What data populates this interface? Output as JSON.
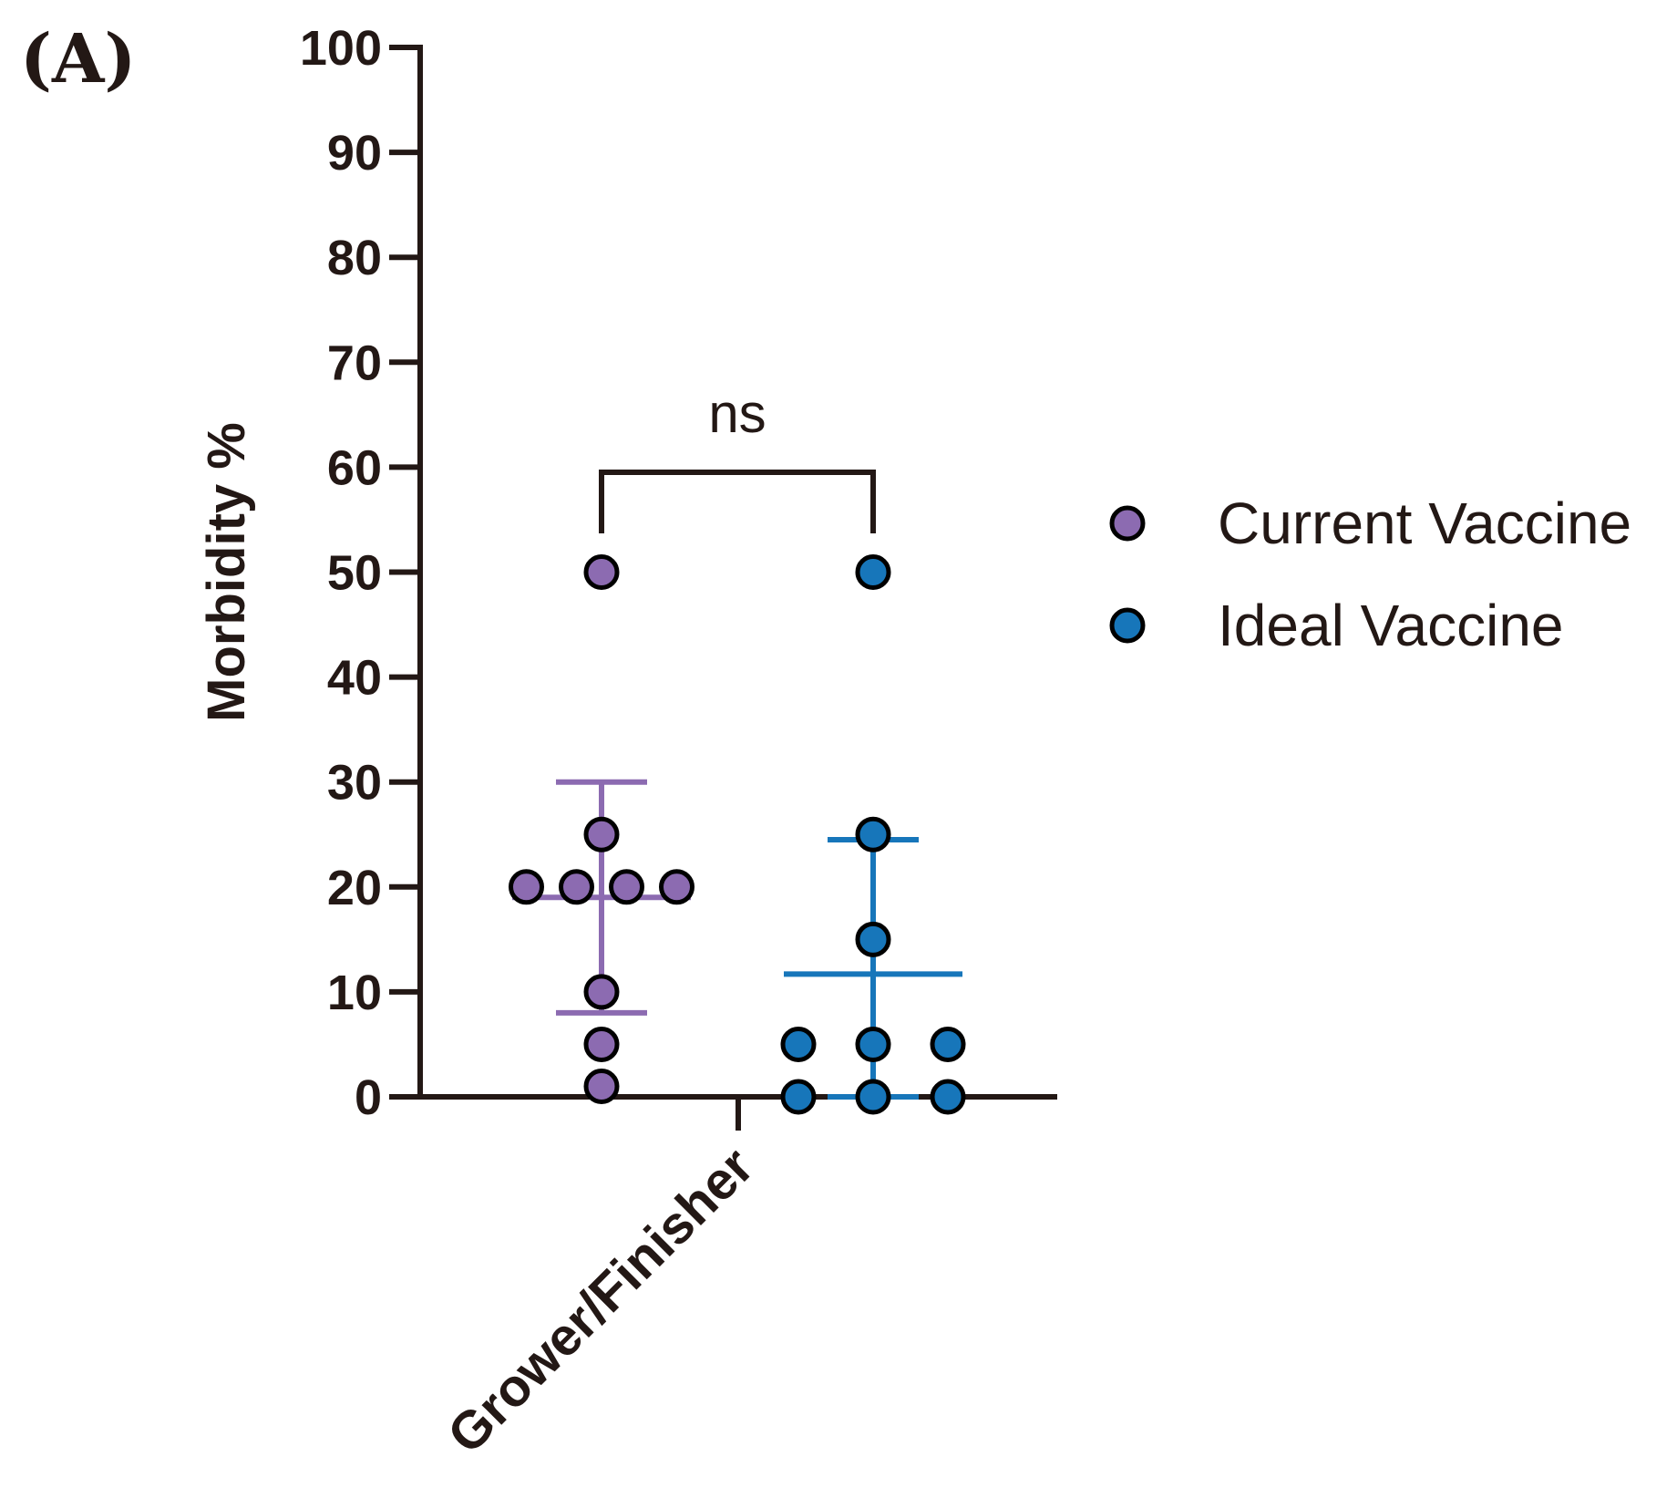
{
  "panel_label": "(A)",
  "colors": {
    "current": "#8C6BB1",
    "ideal": "#1776BA",
    "axis": "#231815"
  },
  "chart_data": {
    "type": "scatter",
    "title": "",
    "xlabel": "",
    "ylabel": "Morbidity %",
    "ylim": [
      0,
      100
    ],
    "yticks": [
      0,
      10,
      20,
      30,
      40,
      50,
      60,
      70,
      80,
      90,
      100
    ],
    "categories": [
      "Grower/Finisher"
    ],
    "series": [
      {
        "name": "Current Vaccine",
        "values": [
          50,
          25,
          20,
          20,
          20,
          20,
          10,
          5,
          1
        ],
        "mean": 19,
        "error_upper": 30,
        "error_lower": 8
      },
      {
        "name": "Ideal Vaccine",
        "values": [
          50,
          25,
          15,
          5,
          5,
          5,
          0,
          0,
          0
        ],
        "mean": 11.7,
        "error_upper": 24.5,
        "error_lower": 0
      }
    ],
    "significance": {
      "label": "ns",
      "between": [
        "Current Vaccine",
        "Ideal Vaccine"
      ]
    },
    "legend_position": "right"
  }
}
